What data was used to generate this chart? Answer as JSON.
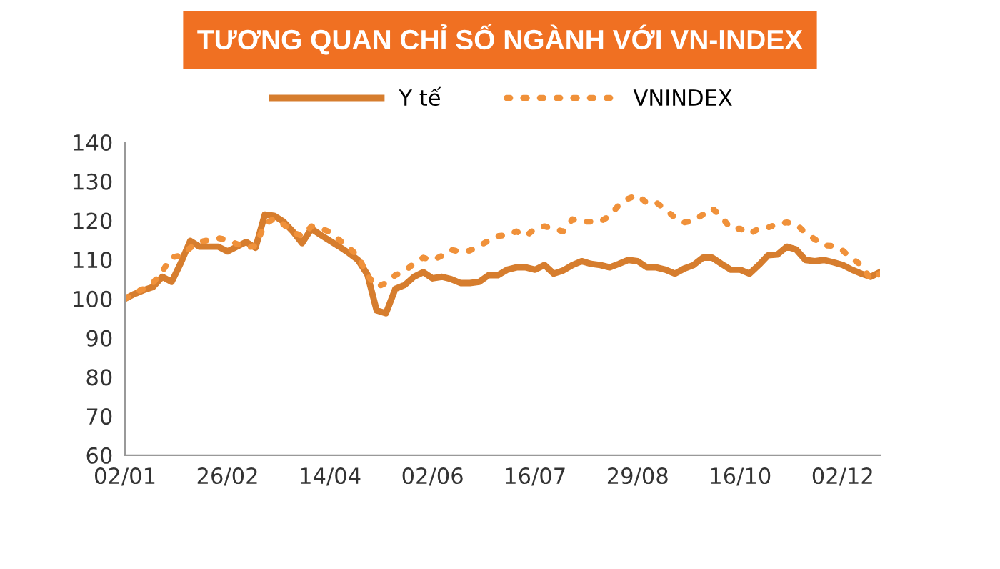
{
  "chart_data": {
    "type": "line",
    "title": "TƯƠNG QUAN CHỈ SỐ NGÀNH VỚI VN-INDEX",
    "categories": [
      "02/01",
      null,
      null,
      null,
      null,
      null,
      null,
      null,
      null,
      null,
      null,
      "26/02",
      null,
      null,
      null,
      null,
      null,
      null,
      null,
      null,
      null,
      null,
      "14/04",
      null,
      null,
      null,
      null,
      null,
      null,
      null,
      null,
      null,
      null,
      "02/06",
      null,
      null,
      null,
      null,
      null,
      null,
      null,
      null,
      null,
      null,
      "16/07",
      null,
      null,
      null,
      null,
      null,
      null,
      null,
      null,
      null,
      null,
      "29/08",
      null,
      null,
      null,
      null,
      null,
      null,
      null,
      null,
      null,
      null,
      "16/10",
      null,
      null,
      null,
      null,
      null,
      null,
      null,
      null,
      null,
      null,
      "02/12",
      null,
      null,
      null,
      null
    ],
    "series": [
      {
        "name": "Y tế",
        "color": "#d67d2e",
        "line_style": "solid",
        "values": [
          100,
          101.2,
          102.2,
          103,
          105.6,
          104.3,
          109.2,
          114.8,
          113.3,
          113.3,
          113.3,
          112.1,
          113.3,
          114.5,
          113,
          121.5,
          121.2,
          119.7,
          117.2,
          114.2,
          117.9,
          116.3,
          114.8,
          113.3,
          111.7,
          109.9,
          106.2,
          97,
          96.3,
          102.5,
          103.5,
          105.6,
          106.8,
          105.2,
          105.6,
          105,
          104,
          104,
          104.3,
          106,
          106,
          107.4,
          108,
          108,
          107.4,
          108.6,
          106.4,
          107.2,
          108.6,
          109.6,
          108.9,
          108.6,
          108,
          108.9,
          109.9,
          109.6,
          108,
          108,
          107.4,
          106.4,
          107.7,
          108.6,
          110.5,
          110.5,
          108.9,
          107.4,
          107.4,
          106.4,
          108.6,
          111.1,
          111.3,
          113.3,
          112.6,
          109.9,
          109.6,
          109.9,
          109.3,
          108.6,
          107.4,
          106.4,
          105.6,
          106.8
        ]
      },
      {
        "name": "VNINDEX",
        "color": "#f0913a",
        "line_style": "dotted",
        "values": [
          100,
          101.5,
          102.5,
          104,
          107,
          110.6,
          111,
          113,
          114.5,
          115,
          115.5,
          115,
          114,
          113,
          113.5,
          119,
          120.5,
          119,
          117,
          116,
          118.5,
          118,
          117,
          115,
          113,
          111,
          106,
          103,
          104,
          106,
          107,
          109,
          110.5,
          109.8,
          111,
          112.5,
          112,
          112.3,
          113.5,
          114.8,
          116,
          116.3,
          117.2,
          116,
          117.9,
          118.5,
          117.9,
          117.2,
          120.3,
          119.7,
          119.7,
          119.7,
          121.2,
          124,
          125.6,
          126.5,
          124.4,
          124.6,
          122.8,
          120.7,
          119.5,
          120,
          121.5,
          123.1,
          120.9,
          117.9,
          117.9,
          116.6,
          117.9,
          118.2,
          119.1,
          119.5,
          119.1,
          116.8,
          115.2,
          113.6,
          113.5,
          112.3,
          110.2,
          108.6,
          104.9,
          106.4
        ]
      }
    ],
    "ylim": [
      60,
      140
    ],
    "yticks": [
      60,
      70,
      80,
      90,
      100,
      110,
      120,
      130,
      140
    ],
    "grid": false,
    "legend": "top"
  }
}
